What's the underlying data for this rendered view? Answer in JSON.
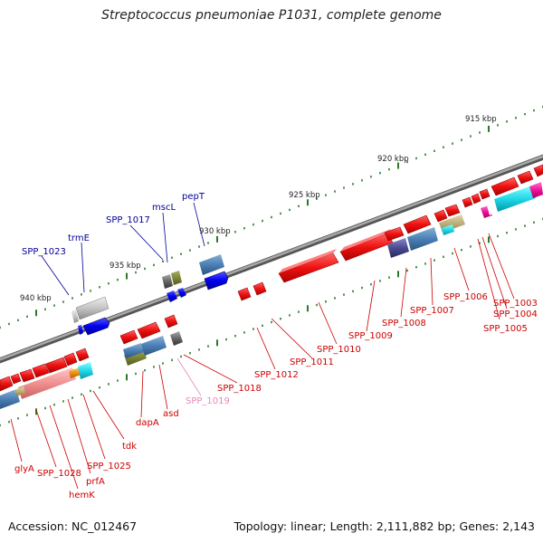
{
  "title": "Streptococcus pneumoniae P1031, complete genome",
  "footer": {
    "accession": "Accession: NC_012467",
    "summary": "Topology: linear; Length: 2,111,882 bp; Genes: 2,143"
  },
  "colors": {
    "backbone": "#808080",
    "tick": "#2a7a2a",
    "forward_gene": "#ee1111",
    "label_red": "#cc0000",
    "label_blue": "#000099",
    "label_pink": "#e888b8"
  },
  "scale_labels": [
    {
      "kbp": 915,
      "text": "915 kbp"
    },
    {
      "kbp": 920,
      "text": "920 kbp"
    },
    {
      "kbp": 925,
      "text": "925 kbp"
    },
    {
      "kbp": 930,
      "text": "930 kbp"
    },
    {
      "kbp": 935,
      "text": "935 kbp"
    },
    {
      "kbp": 940,
      "text": "940 kbp"
    }
  ],
  "gene_labels": [
    {
      "id": "SPP_1003",
      "text": "SPP_1003",
      "color": "red"
    },
    {
      "id": "SPP_1004",
      "text": "SPP_1004",
      "color": "red"
    },
    {
      "id": "SPP_1005",
      "text": "SPP_1005",
      "color": "red"
    },
    {
      "id": "SPP_1006",
      "text": "SPP_1006",
      "color": "red"
    },
    {
      "id": "SPP_1007",
      "text": "SPP_1007",
      "color": "red"
    },
    {
      "id": "SPP_1008",
      "text": "SPP_1008",
      "color": "red"
    },
    {
      "id": "SPP_1009",
      "text": "SPP_1009",
      "color": "red"
    },
    {
      "id": "SPP_1010",
      "text": "SPP_1010",
      "color": "red"
    },
    {
      "id": "SPP_1011",
      "text": "SPP_1011",
      "color": "red"
    },
    {
      "id": "SPP_1012",
      "text": "SPP_1012",
      "color": "red"
    },
    {
      "id": "SPP_1018",
      "text": "SPP_1018",
      "color": "red"
    },
    {
      "id": "SPP_1019",
      "text": "SPP_1019",
      "color": "pink"
    },
    {
      "id": "asd",
      "text": "asd",
      "color": "red"
    },
    {
      "id": "dapA",
      "text": "dapA",
      "color": "red"
    },
    {
      "id": "tdk",
      "text": "tdk",
      "color": "red"
    },
    {
      "id": "SPP_1025",
      "text": "SPP_1025",
      "color": "red"
    },
    {
      "id": "prfA",
      "text": "prfA",
      "color": "red"
    },
    {
      "id": "hemK",
      "text": "hemK",
      "color": "red"
    },
    {
      "id": "SPP_1028",
      "text": "SPP_1028",
      "color": "red"
    },
    {
      "id": "glyA",
      "text": "glyA",
      "color": "red"
    },
    {
      "id": "pepT",
      "text": "pepT",
      "color": "blue"
    },
    {
      "id": "mscL",
      "text": "mscL",
      "color": "blue"
    },
    {
      "id": "SPP_1017",
      "text": "SPP_1017",
      "color": "blue"
    },
    {
      "id": "trmE",
      "text": "trmE",
      "color": "blue"
    },
    {
      "id": "SPP_1023",
      "text": "SPP_1023",
      "color": "blue"
    }
  ]
}
